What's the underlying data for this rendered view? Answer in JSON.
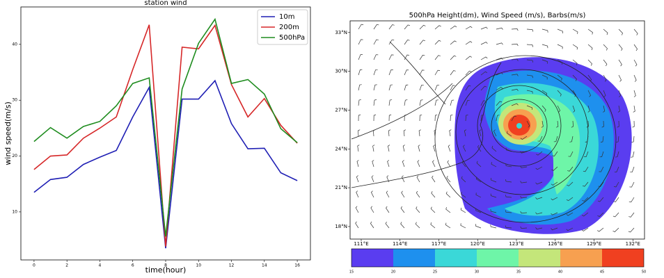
{
  "chart_data": [
    {
      "type": "line",
      "title": "station wind",
      "xlabel": "time(hour)",
      "ylabel": "wind speed(m/s)",
      "x": [
        0,
        1,
        2,
        3,
        4,
        5,
        6,
        7,
        8,
        9,
        10,
        11,
        12,
        13,
        14,
        15,
        16
      ],
      "series": [
        {
          "name": "10m",
          "color": "#1f1fb4",
          "values": [
            13.5,
            15.8,
            16.2,
            18.5,
            19.8,
            21,
            27,
            32.3,
            3.5,
            30.2,
            30.2,
            33.5,
            25.8,
            21.3,
            21.4,
            17,
            15.6
          ]
        },
        {
          "name": "200m",
          "color": "#d62728",
          "values": [
            17.6,
            20,
            20.2,
            23.2,
            25,
            27,
            35.5,
            43.5,
            3.8,
            39.5,
            39.2,
            43.4,
            32.8,
            27,
            30.3,
            25.5,
            22.3
          ]
        },
        {
          "name": "500hPa",
          "color": "#1e8c1e",
          "values": [
            22.6,
            25.1,
            23.2,
            25.3,
            26.2,
            29,
            33,
            34,
            5.6,
            32,
            40.2,
            44.5,
            33,
            33.7,
            31.1,
            24.9,
            22.4
          ]
        }
      ],
      "xlim": [
        -0.8,
        16.8
      ],
      "ylim": [
        1.4,
        46.7
      ],
      "xticks": [
        0,
        2,
        4,
        6,
        8,
        10,
        12,
        14,
        16
      ],
      "yticks": [
        10,
        20,
        30,
        40
      ],
      "legend": "upper right"
    },
    {
      "type": "map",
      "title": "500hPa Height(dm), Wind Speed (m/s), Barbs(m/s)",
      "xlim": [
        110.14,
        132.9
      ],
      "ylim": [
        17.03,
        33.9
      ],
      "xticks": [
        {
          "value": 111,
          "label": "111°E"
        },
        {
          "value": 114,
          "label": "114°E"
        },
        {
          "value": 117,
          "label": "117°E"
        },
        {
          "value": 120,
          "label": "120°E"
        },
        {
          "value": 123,
          "label": "123°E"
        },
        {
          "value": 126,
          "label": "126°E"
        },
        {
          "value": 129,
          "label": "129°E"
        },
        {
          "value": 132,
          "label": "132°E"
        }
      ],
      "yticks": [
        {
          "value": 18,
          "label": "18°N"
        },
        {
          "value": 21,
          "label": "21°N"
        },
        {
          "value": 24,
          "label": "24°N"
        },
        {
          "value": 27,
          "label": "27°N"
        },
        {
          "value": 30,
          "label": "30°N"
        },
        {
          "value": 33,
          "label": "33°N"
        }
      ],
      "levels": [
        15,
        20,
        25,
        30,
        35,
        40,
        45,
        50
      ],
      "colors": [
        "#5a3df0",
        "#1e90ee",
        "#3ad8d8",
        "#6ef5a8",
        "#c4e67a",
        "#f7a050",
        "#f04020"
      ]
    }
  ]
}
